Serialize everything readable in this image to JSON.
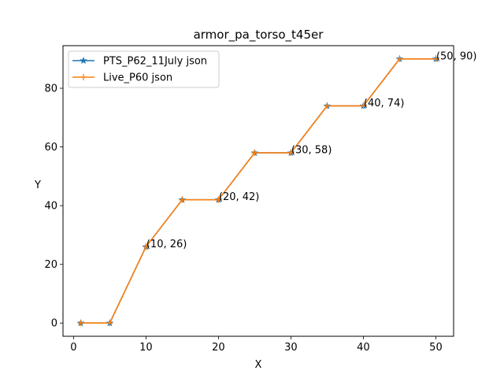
{
  "chart_data": {
    "type": "line",
    "title": "armor_pa_torso_t45er",
    "xlabel": "X",
    "ylabel": "Y",
    "xlim": [
      -1.45,
      52.45
    ],
    "ylim": [
      -4.5,
      94.5
    ],
    "xticks": [
      0,
      10,
      20,
      30,
      40,
      50
    ],
    "yticks": [
      0,
      20,
      40,
      60,
      80
    ],
    "grid": false,
    "legend_position": "upper-left",
    "series": [
      {
        "name": "PTS_P62_11July json",
        "color": "#1f77b4",
        "marker": "star",
        "x": [
          1,
          5,
          10,
          15,
          20,
          25,
          30,
          35,
          40,
          45,
          50
        ],
        "y": [
          0,
          0,
          26,
          42,
          42,
          58,
          58,
          74,
          74,
          90,
          90
        ]
      },
      {
        "name": "Live_P60 json",
        "color": "#ff7f0e",
        "marker": "plus",
        "x": [
          1,
          5,
          10,
          15,
          20,
          25,
          30,
          35,
          40,
          45,
          50
        ],
        "y": [
          0,
          0,
          26,
          42,
          42,
          58,
          58,
          74,
          74,
          90,
          90
        ]
      }
    ],
    "annotations": [
      {
        "text": "(10, 26)",
        "x": 10,
        "y": 26
      },
      {
        "text": "(20, 42)",
        "x": 20,
        "y": 42
      },
      {
        "text": "(30, 58)",
        "x": 30,
        "y": 58
      },
      {
        "text": "(40, 74)",
        "x": 40,
        "y": 74
      },
      {
        "text": "(50, 90)",
        "x": 50,
        "y": 90
      }
    ]
  }
}
